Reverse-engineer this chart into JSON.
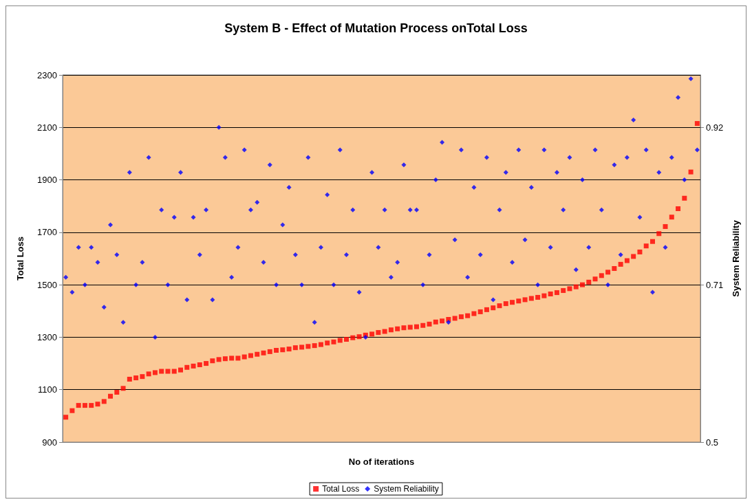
{
  "chart_data": {
    "type": "scatter",
    "title": "System B - Effect of Mutation Process onTotal Loss",
    "xlabel": "No of iterations",
    "ylabel": "Total Loss",
    "y2label": "System Reliability",
    "categories": [
      null,
      null,
      null,
      null,
      null,
      null,
      null,
      null,
      null,
      null,
      null,
      null,
      null,
      null,
      null,
      null,
      null,
      null,
      null,
      null,
      null,
      null,
      null,
      null,
      null,
      null,
      null,
      null,
      null,
      null,
      null,
      null,
      null,
      null,
      null,
      null,
      null,
      null,
      null,
      null,
      null,
      null,
      null,
      null,
      null,
      null,
      null,
      null,
      null,
      null,
      null,
      null,
      null,
      null,
      null,
      null,
      null,
      null,
      null,
      null,
      null,
      null,
      null,
      null,
      null,
      null,
      null,
      null,
      null,
      null,
      null,
      null,
      null,
      null,
      null,
      null,
      null,
      null,
      null,
      null,
      null,
      null,
      null,
      null,
      null,
      null,
      null,
      null,
      null,
      null,
      null,
      null,
      null,
      null,
      null,
      null,
      null,
      null,
      null,
      null
    ],
    "ylim": [
      900,
      2300
    ],
    "yticks": [
      900,
      1100,
      1300,
      1500,
      1700,
      1900,
      2100,
      2300
    ],
    "y2lim": [
      0.5,
      0.99
    ],
    "y2ticks": [
      0.5,
      0.71,
      0.92
    ],
    "grid": "y",
    "legend": "bottom",
    "series": [
      {
        "name": "Total Loss",
        "color": "#ff0000",
        "marker": "square",
        "values": [
          995,
          1020,
          1040,
          1040,
          1040,
          1045,
          1055,
          1075,
          1090,
          1105,
          1140,
          1145,
          1150,
          1160,
          1165,
          1170,
          1170,
          1170,
          1175,
          1185,
          1190,
          1195,
          1200,
          1210,
          1215,
          1218,
          1220,
          1220,
          1225,
          1230,
          1235,
          1240,
          1245,
          1250,
          1252,
          1255,
          1260,
          1262,
          1265,
          1268,
          1272,
          1278,
          1282,
          1288,
          1292,
          1298,
          1302,
          1308,
          1312,
          1318,
          1322,
          1328,
          1332,
          1336,
          1338,
          1340,
          1345,
          1350,
          1358,
          1362,
          1368,
          1372,
          1378,
          1382,
          1390,
          1397,
          1405,
          1412,
          1420,
          1428,
          1433,
          1438,
          1443,
          1448,
          1452,
          1458,
          1465,
          1470,
          1478,
          1485,
          1492,
          1500,
          1510,
          1522,
          1535,
          1548,
          1562,
          1578,
          1592,
          1608,
          1625,
          1648,
          1665,
          1695,
          1722,
          1758,
          1790,
          1830,
          1930,
          2115
        ]
      },
      {
        "name": "System Reliability",
        "color": "#0000ff",
        "marker": "diamond",
        "axis": "y2",
        "values": [
          0.72,
          0.7,
          0.76,
          0.71,
          0.76,
          0.74,
          0.68,
          0.79,
          0.75,
          0.66,
          0.86,
          0.71,
          0.74,
          0.88,
          0.64,
          0.81,
          0.71,
          0.8,
          0.86,
          0.69,
          0.8,
          0.75,
          0.81,
          0.69,
          0.92,
          0.88,
          0.72,
          0.76,
          0.89,
          0.81,
          0.82,
          0.74,
          0.87,
          0.71,
          0.79,
          0.84,
          0.75,
          0.71,
          0.88,
          0.66,
          0.76,
          0.83,
          0.71,
          0.89,
          0.75,
          0.81,
          0.7,
          0.64,
          0.86,
          0.76,
          0.81,
          0.72,
          0.74,
          0.87,
          0.81,
          0.81,
          0.71,
          0.75,
          0.85,
          0.9,
          0.66,
          0.77,
          0.89,
          0.72,
          0.84,
          0.75,
          0.88,
          0.69,
          0.81,
          0.86,
          0.74,
          0.89,
          0.77,
          0.84,
          0.71,
          0.89,
          0.76,
          0.86,
          0.81,
          0.88,
          0.73,
          0.85,
          0.76,
          0.89,
          0.81,
          0.71,
          0.87,
          0.75,
          0.88,
          0.93,
          0.8,
          0.89,
          0.7,
          0.86,
          0.76,
          0.88,
          0.96,
          0.85,
          0.985,
          0.89
        ]
      }
    ]
  }
}
